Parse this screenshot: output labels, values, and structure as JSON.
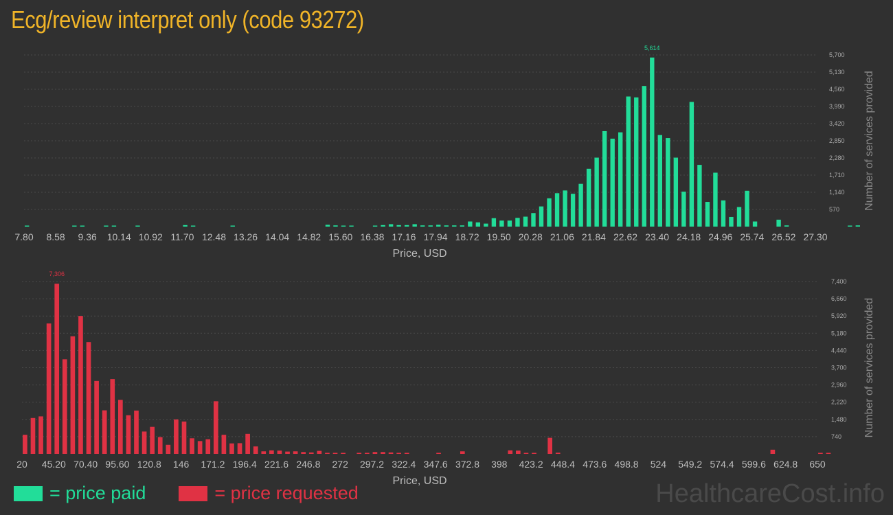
{
  "title": "Ecg/review interpret only (code 93272)",
  "colors": {
    "paid": "#22dd99",
    "requested": "#e03244",
    "title": "#f0b428",
    "background": "#303030"
  },
  "legend": {
    "paid": "= price paid",
    "requested": "= price requested"
  },
  "watermark": "HealthcareCost.info",
  "chart_data": [
    {
      "type": "bar",
      "name": "price-paid-histogram",
      "xlabel": "Price, USD",
      "ylabel": "Number of services provided",
      "xlim": [
        7.8,
        27.3
      ],
      "ylim": [
        0,
        5700
      ],
      "x_tick_labels": [
        "7.80",
        "8.58",
        "9.36",
        "10.14",
        "10.92",
        "11.70",
        "12.48",
        "13.26",
        "14.04",
        "14.82",
        "15.60",
        "16.38",
        "17.16",
        "17.94",
        "18.72",
        "19.50",
        "20.28",
        "21.06",
        "21.84",
        "22.62",
        "23.40",
        "24.18",
        "24.96",
        "25.74",
        "26.52",
        "27.30"
      ],
      "y_tick_labels": [
        "570",
        "1,140",
        "1,710",
        "2,280",
        "2,850",
        "3,420",
        "3,990",
        "4,560",
        "5,130",
        "5,700"
      ],
      "peak_label": "5,614",
      "bin_start": 7.8,
      "bin_width": 0.195,
      "values": [
        20,
        0,
        0,
        0,
        0,
        0,
        15,
        10,
        0,
        0,
        12,
        10,
        0,
        0,
        15,
        0,
        0,
        0,
        0,
        0,
        50,
        30,
        0,
        0,
        0,
        0,
        30,
        0,
        0,
        0,
        0,
        0,
        0,
        0,
        0,
        0,
        0,
        0,
        60,
        40,
        20,
        20,
        0,
        0,
        30,
        50,
        80,
        50,
        50,
        80,
        40,
        40,
        60,
        40,
        40,
        40,
        170,
        140,
        100,
        280,
        200,
        200,
        290,
        330,
        450,
        670,
        940,
        1110,
        1200,
        1090,
        1420,
        1920,
        2290,
        3170,
        2920,
        3130,
        4320,
        4290,
        4670,
        5614,
        3040,
        2940,
        2290,
        1160,
        4140,
        2050,
        820,
        1790,
        870,
        320,
        650,
        1190,
        170,
        0,
        0,
        230,
        40,
        0,
        0,
        0,
        0,
        0,
        0,
        0,
        25,
        40,
        0,
        0,
        0,
        0,
        0,
        0,
        0,
        0,
        40,
        0,
        0,
        0,
        0,
        0,
        25,
        0,
        0,
        0,
        25,
        0,
        0,
        0,
        0,
        0,
        0,
        0,
        25,
        0,
        0,
        0,
        30
      ]
    },
    {
      "type": "bar",
      "name": "price-requested-histogram",
      "xlabel": "Price, USD",
      "ylabel": "Number of services provided",
      "xlim": [
        20,
        650
      ],
      "ylim": [
        0,
        7400
      ],
      "x_tick_labels": [
        "20",
        "45.20",
        "70.40",
        "95.60",
        "120.8",
        "146",
        "171.2",
        "196.4",
        "221.6",
        "246.8",
        "272",
        "297.2",
        "322.4",
        "347.6",
        "372.8",
        "398",
        "423.2",
        "448.4",
        "473.6",
        "498.8",
        "524",
        "549.2",
        "574.4",
        "599.6",
        "624.8",
        "650"
      ],
      "y_tick_labels": [
        "740",
        "1,480",
        "2,220",
        "2,960",
        "3,700",
        "4,440",
        "5,180",
        "5,920",
        "6,660",
        "7,400"
      ],
      "peak_label": "7,306",
      "bin_start": 20,
      "bin_width": 6.3,
      "values": [
        820,
        1540,
        1610,
        5600,
        7306,
        4060,
        5050,
        5920,
        4800,
        3130,
        1870,
        3210,
        2320,
        1660,
        1860,
        960,
        1160,
        720,
        390,
        1480,
        1390,
        670,
        550,
        630,
        2260,
        820,
        450,
        460,
        860,
        320,
        110,
        150,
        140,
        100,
        110,
        80,
        60,
        130,
        40,
        45,
        40,
        0,
        40,
        40,
        80,
        80,
        60,
        40,
        40,
        0,
        0,
        0,
        40,
        0,
        0,
        110,
        0,
        0,
        0,
        0,
        0,
        150,
        140,
        40,
        40,
        0,
        690,
        50,
        0,
        0,
        0,
        0,
        0,
        0,
        0,
        0,
        0,
        0,
        0,
        0,
        0,
        0,
        0,
        0,
        0,
        0,
        0,
        0,
        0,
        0,
        0,
        0,
        0,
        0,
        180,
        0,
        0,
        0,
        0,
        0,
        40,
        40,
        0,
        0,
        0,
        0,
        0,
        0,
        0,
        0,
        0,
        0,
        0,
        0,
        0,
        0,
        0,
        0,
        0,
        0,
        0,
        0,
        0,
        0,
        0,
        0,
        0,
        0,
        0,
        0,
        0,
        40
      ]
    }
  ]
}
